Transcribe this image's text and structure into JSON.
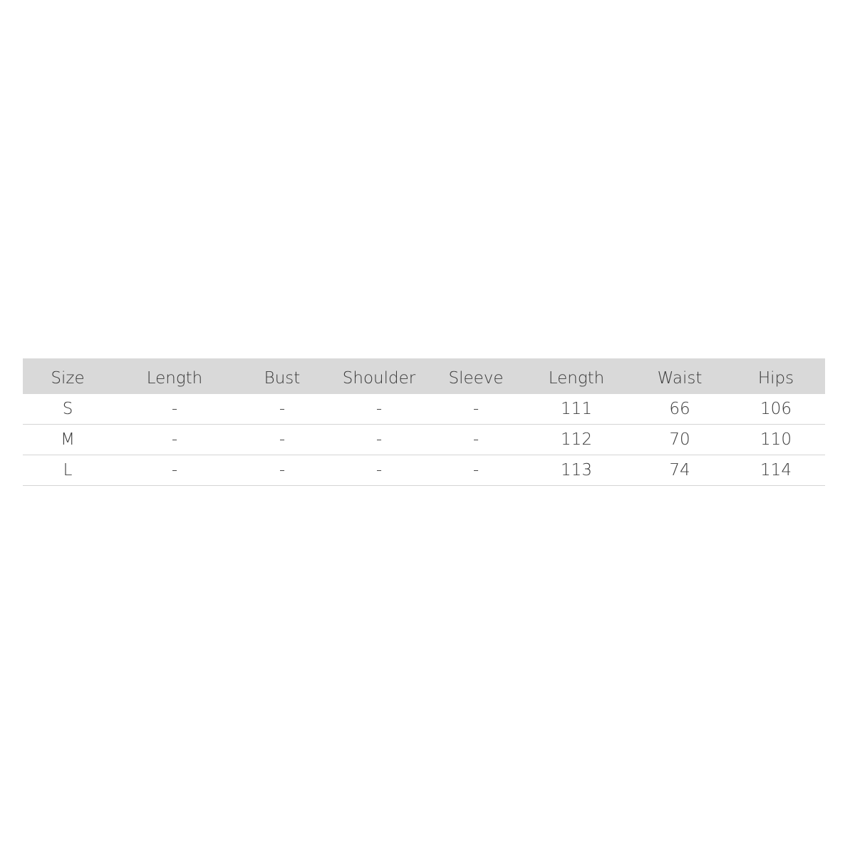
{
  "table": {
    "header": [
      "Size",
      "Length",
      "Bust",
      "Shoulder",
      "Sleeve",
      "Length",
      "Waist",
      "Hips"
    ],
    "rows": [
      [
        "S",
        "-",
        "-",
        "-",
        "-",
        111,
        66,
        106
      ],
      [
        "M",
        "-",
        "-",
        "-",
        "-",
        112,
        70,
        110
      ],
      [
        "L",
        "-",
        "-",
        "-",
        "-",
        113,
        74,
        114
      ]
    ]
  }
}
